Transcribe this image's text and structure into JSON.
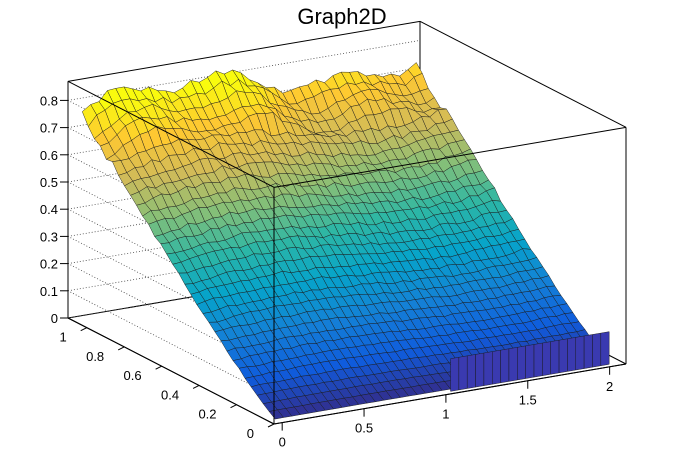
{
  "chart_data": {
    "type": "surface",
    "title": "Graph2D",
    "xlabel": "",
    "ylabel": "",
    "zlabel": "",
    "x_ticks": [
      "0",
      "0.5",
      "1",
      "1.5",
      "2"
    ],
    "y_ticks": [
      "0",
      "0.2",
      "0.4",
      "0.6",
      "0.8",
      "1"
    ],
    "z_ticks": [
      "0",
      "0.1",
      "0.2",
      "0.3",
      "0.4",
      "0.5",
      "0.6",
      "0.7",
      "0.8"
    ],
    "xlim": [
      -0.05,
      2.1
    ],
    "ylim": [
      0,
      1.1
    ],
    "zlim": [
      0,
      0.85
    ],
    "grid": true,
    "colormap": [
      "#352a87",
      "#0f5cdd",
      "#1481d6",
      "#06a4ca",
      "#2eb7a4",
      "#87bf77",
      "#d1bb59",
      "#fec832",
      "#f9fb0e"
    ],
    "surface_samples": [
      {
        "x": 0.0,
        "y": 0.0,
        "z": 0.0
      },
      {
        "x": 0.0,
        "y": 1.0,
        "z": 0.72
      },
      {
        "x": 1.0,
        "y": 1.0,
        "z": 0.74
      },
      {
        "x": 2.0,
        "y": 1.0,
        "z": 0.76
      },
      {
        "x": 1.0,
        "y": 0.5,
        "z": 0.35
      },
      {
        "x": 2.0,
        "y": 0.5,
        "z": 0.37
      },
      {
        "x": 1.0,
        "y": 0.0,
        "z": 0.0
      },
      {
        "x": 2.0,
        "y": 0.0,
        "z": 0.0
      }
    ]
  }
}
